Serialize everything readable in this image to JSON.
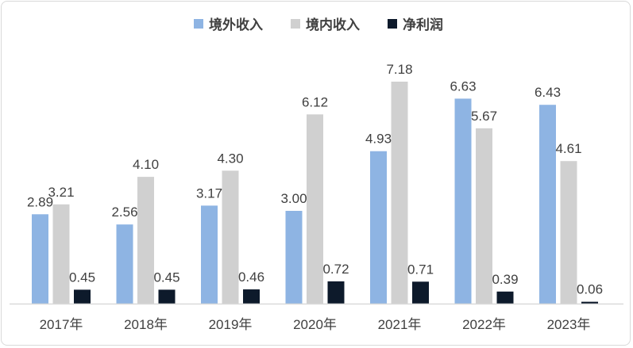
{
  "chart_data": {
    "type": "bar",
    "title": "",
    "xlabel": "",
    "ylabel": "",
    "ylim": [
      0,
      7.5
    ],
    "grid": false,
    "legend_position": "top",
    "categories": [
      "2017年",
      "2018年",
      "2019年",
      "2020年",
      "2021年",
      "2022年",
      "2023年"
    ],
    "series": [
      {
        "name": "境外收入",
        "color": "#8eb4e3",
        "values": [
          2.89,
          2.56,
          3.17,
          3.0,
          4.93,
          6.63,
          6.43
        ]
      },
      {
        "name": "境内收入",
        "color": "#d0d0d0",
        "values": [
          3.21,
          4.1,
          4.3,
          6.12,
          7.18,
          5.67,
          4.61
        ]
      },
      {
        "name": "净利润",
        "color": "#0d1a2b",
        "values": [
          0.45,
          0.45,
          0.46,
          0.72,
          0.71,
          0.39,
          0.06
        ]
      }
    ]
  }
}
